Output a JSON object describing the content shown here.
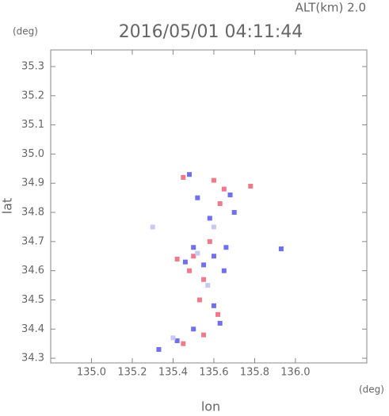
{
  "chart_data": {
    "type": "scatter",
    "title": "2016/05/01 04:11:44",
    "subtitle": "ALT(km) 2.0",
    "x_label": "lon",
    "x_unit": "(deg)",
    "y_label": "lat",
    "y_unit": "(deg)",
    "xlim": [
      134.8,
      136.35
    ],
    "xticks": [
      {
        "value": 135,
        "label": "135.0"
      },
      135.2,
      135.4,
      135.6,
      135.8,
      {
        "value": 136,
        "label": "136.0"
      }
    ],
    "ylim": [
      34.284,
      35.357
    ],
    "yticks": [
      34.3,
      34.4,
      34.5,
      34.6,
      34.7,
      34.8,
      34.9,
      {
        "value": 35,
        "label": "35.0"
      },
      35.1,
      35.2,
      35.3
    ],
    "series": [
      {
        "color": "#6f6ff0",
        "x": [
          135.48,
          135.52,
          135.58,
          135.68,
          135.5,
          135.6,
          135.55,
          135.65,
          135.6,
          135.63,
          135.42,
          135.5,
          135.93,
          135.33,
          135.7,
          135.46,
          135.66
        ],
        "values": [
          34.93,
          34.85,
          34.78,
          34.86,
          34.68,
          34.65,
          34.62,
          34.6,
          34.48,
          34.42,
          34.36,
          34.4,
          34.675,
          34.33,
          34.8,
          34.63,
          34.68
        ]
      },
      {
        "color": "#f07a8a",
        "x": [
          135.45,
          135.6,
          135.63,
          135.5,
          135.42,
          135.55,
          135.62,
          135.55,
          135.45,
          135.48,
          135.65,
          135.58,
          135.53,
          135.78
        ],
        "values": [
          34.92,
          34.91,
          34.83,
          34.65,
          34.64,
          34.57,
          34.45,
          34.38,
          34.35,
          34.6,
          34.88,
          34.7,
          34.5,
          34.89
        ]
      },
      {
        "color": "#c8c8f4",
        "x": [
          135.52,
          135.57,
          135.4,
          135.6,
          135.3
        ],
        "values": [
          34.66,
          34.55,
          34.37,
          34.75,
          34.75
        ]
      }
    ]
  }
}
